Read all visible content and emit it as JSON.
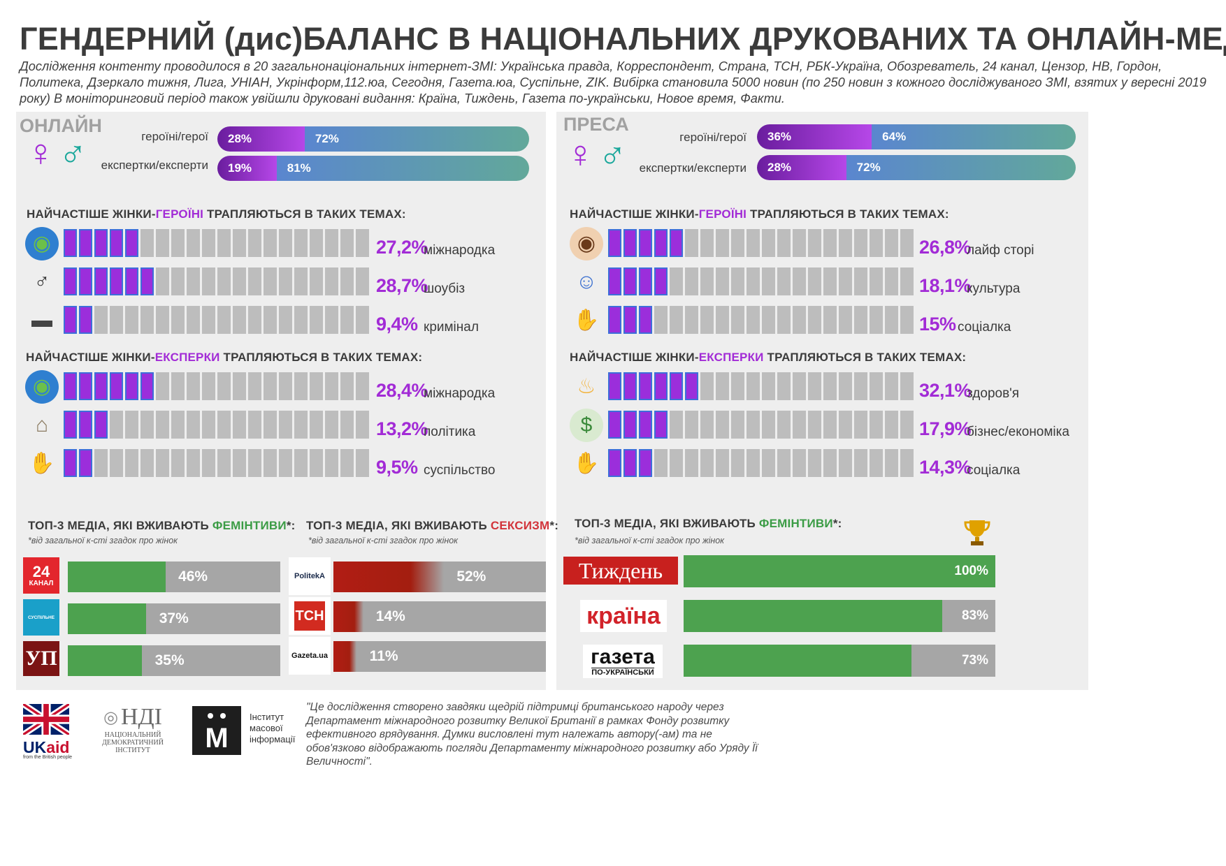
{
  "title": "ГЕНДЕРНИЙ (дис)БАЛАНС В НАЦІОНАЛЬНИХ ДРУКОВАНИХ ТА ОНЛАЙН-МЕДІА",
  "intro": "Дослідження контенту проводилося в 20 загальнонаціональних інтернет-ЗМІ:  Українська правда, Корреспондент, Страна, ТСН, РБК-Україна, Обозреватель, 24 канал, Цензор, НВ, Гордон, Политека, Дзеркало тижня, Лига, УНІАН, Укрінформ,112.юа, Сегодня, Газета.юа, Суспільне, ZIK. Вибірка становила 5000 новин (по 250 новин з кожного досліджуваного ЗМІ, взятих у вересні 2019 року) В моніторинговий період  також увійшли друковані видання: Країна, Тиждень, Газета по-українськи, Новое время, Факти.",
  "icons": {
    "female": "female-sign-icon",
    "male": "male-sign-icon"
  },
  "colors": {
    "purple": "#a22bd6",
    "green": "#4da24f",
    "red": "#b11d14",
    "teal": "#1aa79b",
    "panel": "#eeeeee"
  },
  "online": {
    "label": "ОНЛАЙН",
    "heroes_label": "героїні/герої",
    "experts_label": "експертки/експерти",
    "heroines_head": [
      "НАЙЧАСТІШЕ ЖІНКИ-",
      "ГЕРОЇНІ",
      " ТРАПЛЯЮТЬСЯ В ТАКИХ ТЕМАХ:"
    ],
    "experts_head": [
      "НАЙЧАСТІШЕ ЖІНКИ-",
      "ЕКСПЕРКИ",
      " ТРАПЛЯЮТЬСЯ В ТАКИХ ТЕМАХ:"
    ],
    "fem_head": [
      "ТОП-3 МЕДІА, ЯКІ ВЖИВАЮТЬ ",
      "ФЕМІНТИВИ",
      "*:"
    ],
    "sex_head": [
      "ТОП-3 МЕДІА, ЯКІ ВЖИВАЮТЬ ",
      "СЕКСИЗМ",
      "*:"
    ],
    "note": "*від загальної к-сті згадок про жінок"
  },
  "press": {
    "label": "ПРЕСА",
    "heroes_label": "героїні/герої",
    "experts_label": "експертки/експерти",
    "heroines_head": [
      "НАЙЧАСТІШЕ ЖІНКИ-",
      "ГЕРОЇНІ",
      "  ТРАПЛЯЮТЬСЯ В ТАКИХ ТЕМАХ:"
    ],
    "experts_head": [
      "НАЙЧАСТІШЕ ЖІНКИ-",
      "ЕКСПЕРКИ",
      "  ТРАПЛЯЮТЬСЯ В ТАКИХ ТЕМАХ:"
    ],
    "fem_head": [
      "ТОП-3 МЕДІА, ЯКІ ВЖИВАЮТЬ ",
      "ФЕМІНТИВИ",
      "*:"
    ],
    "note": "*від загальної к-сті згадок про жінок",
    "trophy_icon": "trophy-icon"
  },
  "chart_data": [
    {
      "id": "online-ratio",
      "type": "bar",
      "series": [
        {
          "category": "героїні/герої",
          "female_pct": 28,
          "male_pct": 72,
          "female_label": "28%",
          "male_label": "72%"
        },
        {
          "category": "експертки/експерти",
          "female_pct": 19,
          "male_pct": 81,
          "female_label": "19%",
          "male_label": "81%"
        }
      ]
    },
    {
      "id": "press-ratio",
      "type": "bar",
      "series": [
        {
          "category": "героїні/герої",
          "female_pct": 36,
          "male_pct": 64,
          "female_label": "36%",
          "male_label": "64%"
        },
        {
          "category": "експертки/експерти",
          "female_pct": 28,
          "male_pct": 72,
          "female_label": "28%",
          "male_label": "72%"
        }
      ]
    },
    {
      "id": "online-heroines",
      "type": "bar",
      "rows": [
        {
          "icon": "globe-icon",
          "value": 27.2,
          "label": "27,2%",
          "topic": "міжнародка"
        },
        {
          "icon": "microphone-icon",
          "value": 28.7,
          "label": "28,7%",
          "topic": "шоубіз"
        },
        {
          "icon": "pistol-icon",
          "value": 9.4,
          "label": "9,4%",
          "topic": "кримінал"
        }
      ]
    },
    {
      "id": "online-experts",
      "type": "bar",
      "rows": [
        {
          "icon": "globe-icon",
          "value": 28.4,
          "label": "28,4%",
          "topic": "міжнародка"
        },
        {
          "icon": "government-building-icon",
          "value": 13.2,
          "label": "13,2%",
          "topic": "політика"
        },
        {
          "icon": "waving-hand-icon",
          "value": 9.5,
          "label": "9,5%",
          "topic": "суспільство"
        }
      ]
    },
    {
      "id": "press-heroines",
      "type": "bar",
      "rows": [
        {
          "icon": "eye-icon",
          "value": 26.8,
          "label": "26,8%",
          "topic": "лайф сторі"
        },
        {
          "icon": "theater-masks-icon",
          "value": 18.1,
          "label": "18,1%",
          "topic": "культура"
        },
        {
          "icon": "waving-hand-icon",
          "value": 15,
          "label": "15%",
          "topic": "соціалка"
        }
      ]
    },
    {
      "id": "press-experts",
      "type": "bar",
      "rows": [
        {
          "icon": "meditation-icon",
          "value": 32.1,
          "label": "32,1%",
          "topic": "здоров'я"
        },
        {
          "icon": "money-icon",
          "value": 17.9,
          "label": "17,9%",
          "topic": "бізнес/економіка"
        },
        {
          "icon": "waving-hand-icon",
          "value": 14.3,
          "label": "14,3%",
          "topic": "соціалка"
        }
      ]
    },
    {
      "id": "online-feminitives",
      "type": "bar",
      "rows": [
        {
          "media": "24 канал",
          "logo": [
            "24",
            "КАНАЛ"
          ],
          "value": 46,
          "label": "46%"
        },
        {
          "media": "Суспільне",
          "logo": [
            "СУСПІЛЬНЕ"
          ],
          "value": 37,
          "label": "37%"
        },
        {
          "media": "УП",
          "logo": [
            "УП"
          ],
          "value": 35,
          "label": "35%"
        }
      ]
    },
    {
      "id": "online-sexism",
      "type": "bar",
      "rows": [
        {
          "media": "Politeka",
          "logo": [
            "PolitekA"
          ],
          "value": 52,
          "label": "52%"
        },
        {
          "media": "ТСН",
          "logo": [
            "ТСН"
          ],
          "value": 14,
          "label": "14%"
        },
        {
          "media": "Gazeta.ua",
          "logo": [
            "Gazeta.ua"
          ],
          "value": 11,
          "label": "11%"
        }
      ]
    },
    {
      "id": "press-feminitives",
      "type": "bar",
      "rows": [
        {
          "media": "Тиждень",
          "logo": [
            "Тиждень"
          ],
          "value": 100,
          "label": "100%"
        },
        {
          "media": "Країна",
          "logo": [
            "країна"
          ],
          "value": 83,
          "label": "83%"
        },
        {
          "media": "Газета по-українськи",
          "logo": [
            "газета",
            "ПО-УКРАЇНСЬКИ"
          ],
          "value": 73,
          "label": "73%"
        }
      ]
    }
  ],
  "footer": {
    "ukaid": [
      "UK",
      "aid",
      "from the British people"
    ],
    "ndi": [
      "НДІ",
      "НАЦІОНАЛЬНИЙ",
      "ДЕМОКРАТИЧНИЙ",
      "ІНСТИТУТ"
    ],
    "imi": [
      "М",
      "Інститут",
      "масової",
      "інформації"
    ],
    "text": "\"Це дослідження створено завдяки щедрій підтримці британського народу через Департамент міжнародного розвитку Великої Британії в рамках Фонду розвитку ефективного врядування. Думки висловлені тут належать автору(-ам) та не обов'язково відображають погляди Департаменту міжнародного розвитку або Уряду Її Величності\"."
  }
}
